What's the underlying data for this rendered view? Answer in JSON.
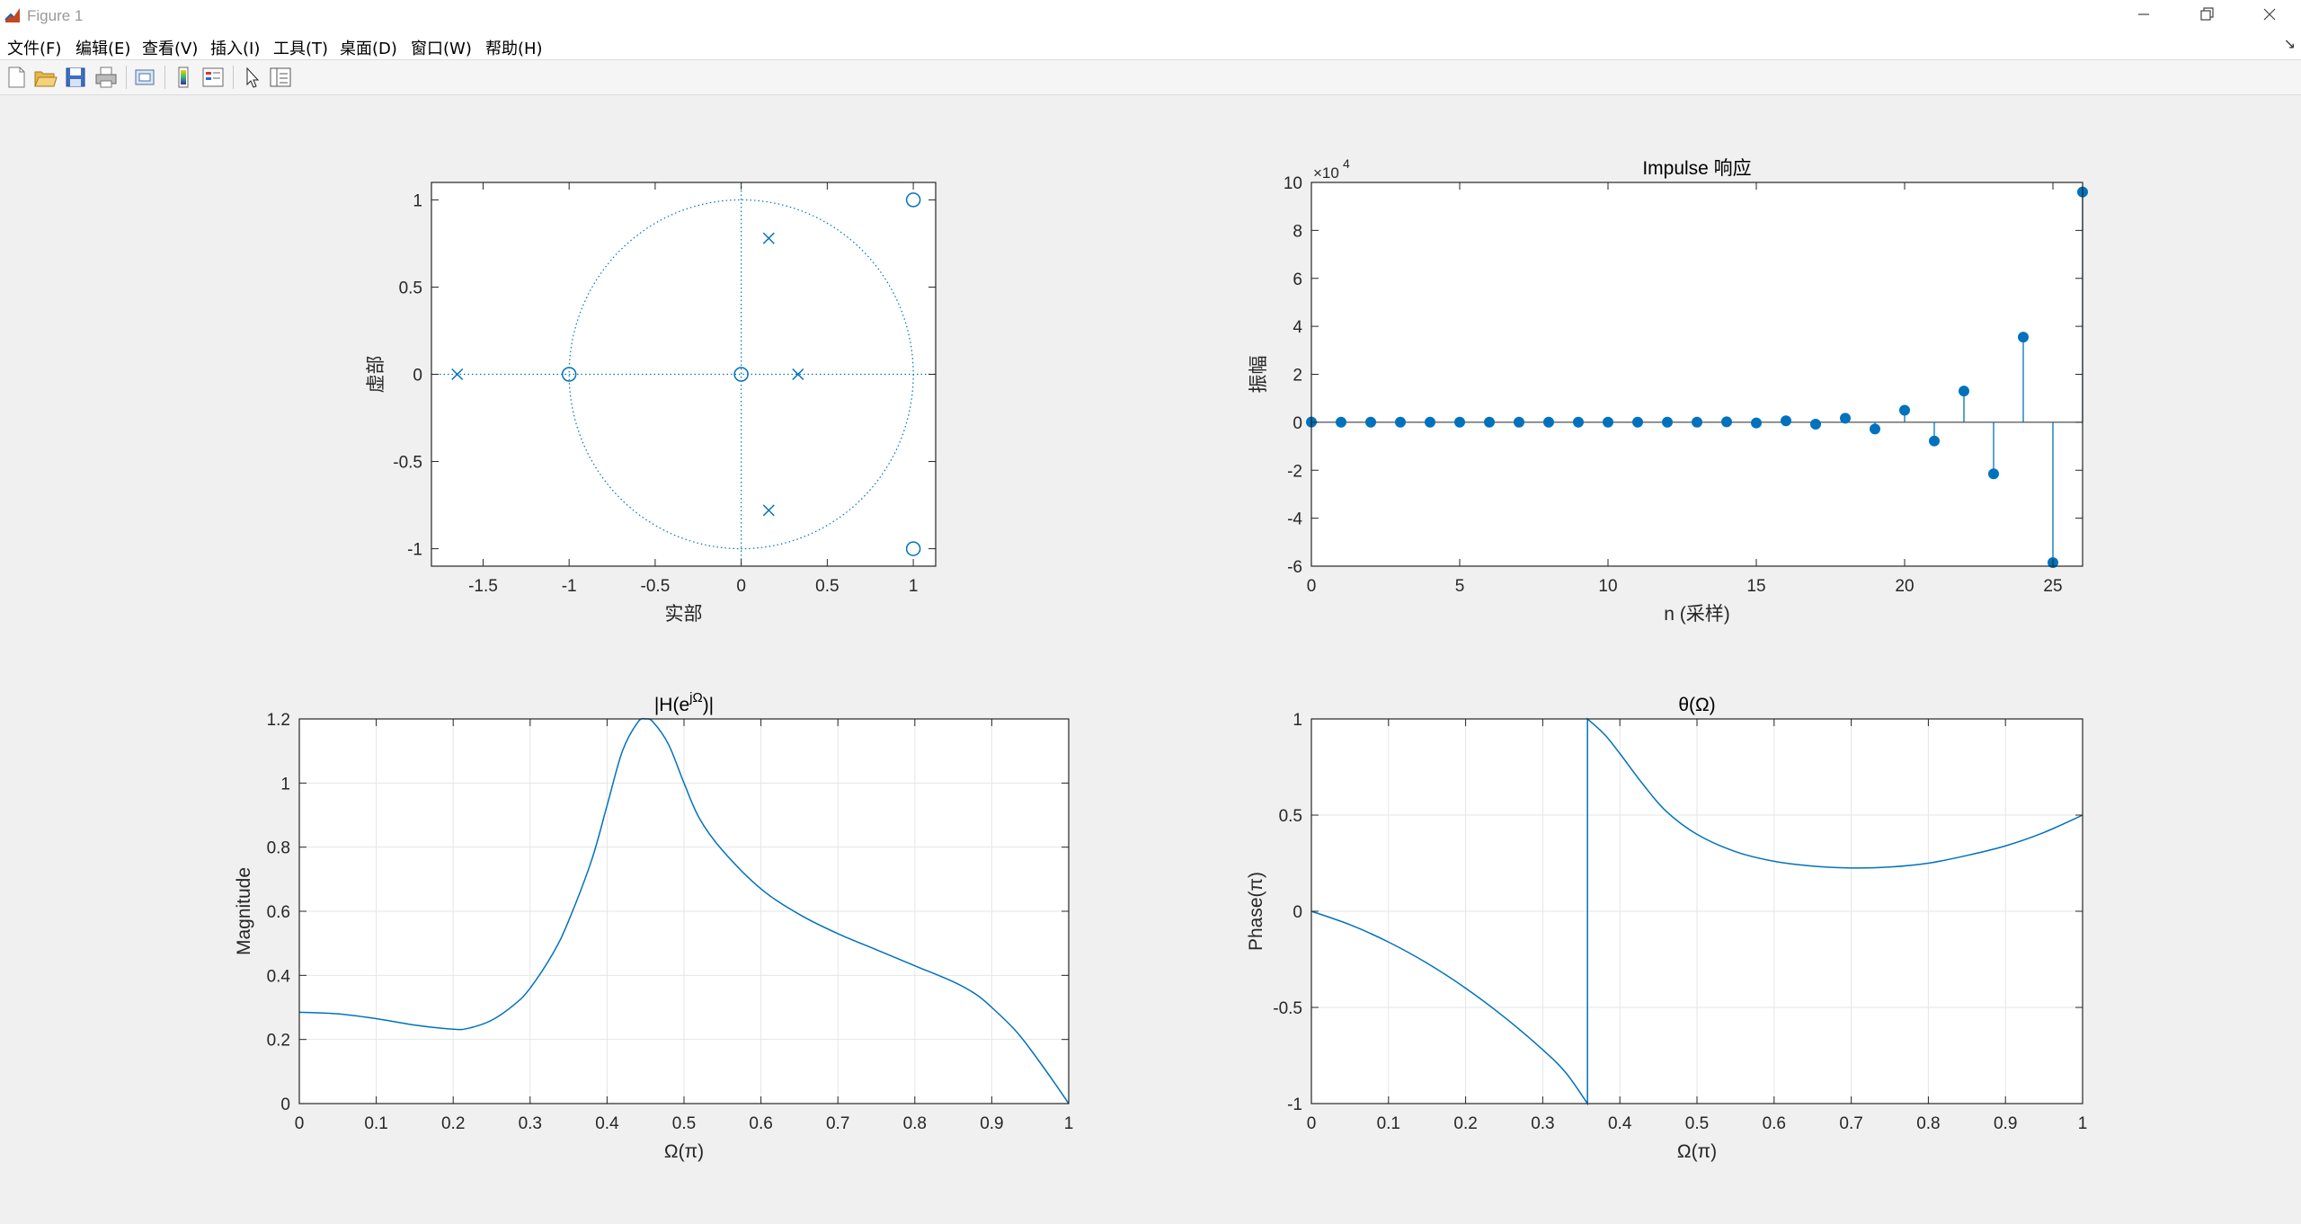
{
  "window": {
    "title": "Figure 1"
  },
  "menu": [
    "文件(F)",
    "编辑(E)",
    "查看(V)",
    "插入(I)",
    "工具(T)",
    "桌面(D)",
    "窗口(W)",
    "帮助(H)"
  ],
  "colors": {
    "plot": "#0072bd",
    "grid": "#e6e6e6",
    "axis": "#262626",
    "background": "#f0f0f0"
  },
  "toolbar_icons": [
    "new-figure-icon",
    "open-file-icon",
    "save-icon",
    "print-icon",
    "print-preview-icon",
    "link-plot-icon",
    "property-editor-icon",
    "pointer-icon",
    "insert-legend-icon"
  ],
  "chart_data": [
    {
      "type": "scatter",
      "xlabel": "实部",
      "ylabel": "虚部",
      "xlim": [
        -1.8,
        1.13
      ],
      "ylim": [
        -1.1,
        1.1
      ],
      "xticks": [
        -1.5,
        -1,
        -0.5,
        0,
        0.5,
        1
      ],
      "xticklabels": [
        "-1.5",
        "-1",
        "-0.5",
        "0",
        "0.5",
        "1"
      ],
      "yticks": [
        -1,
        -0.5,
        0,
        0.5,
        1
      ],
      "yticklabels": [
        "-1",
        "-0.5",
        "0",
        "0.5",
        "1"
      ],
      "grid": false,
      "unit_circle": true,
      "zeros": [
        [
          -1,
          0
        ],
        [
          0,
          0
        ],
        [
          1,
          1
        ],
        [
          1,
          -1
        ]
      ],
      "poles": [
        [
          -1.65,
          0
        ],
        [
          0.33,
          0
        ],
        [
          0.16,
          0.78
        ],
        [
          0.16,
          -0.78
        ]
      ]
    },
    {
      "type": "stem",
      "title": "Impulse 响应",
      "xlabel": "n (采样)",
      "ylabel": "振幅",
      "exponent_label": "×10",
      "exponent_power": "4",
      "xlim": [
        0,
        26
      ],
      "ylim": [
        -6,
        10
      ],
      "xticks": [
        0,
        5,
        10,
        15,
        20,
        25
      ],
      "xticklabels": [
        "0",
        "5",
        "10",
        "15",
        "20",
        "25"
      ],
      "yticks": [
        -6,
        -4,
        -2,
        0,
        2,
        4,
        6,
        8,
        10
      ],
      "yticklabels": [
        "-6",
        "-4",
        "-2",
        "0",
        "2",
        "4",
        "6",
        "8",
        "10"
      ],
      "grid": false,
      "x": [
        0,
        1,
        2,
        3,
        4,
        5,
        6,
        7,
        8,
        9,
        10,
        11,
        12,
        13,
        14,
        15,
        16,
        17,
        18,
        19,
        20,
        21,
        22,
        23,
        24,
        25,
        26
      ],
      "values": [
        0.01,
        0.005,
        0.005,
        0.005,
        0.005,
        0.005,
        0.005,
        0.005,
        0.005,
        0.005,
        0.005,
        0.005,
        0.005,
        0.005,
        0.02,
        -0.03,
        0.06,
        -0.08,
        0.17,
        -0.28,
        0.5,
        -0.78,
        1.3,
        -2.15,
        3.55,
        -5.85,
        9.6
      ]
    },
    {
      "type": "line",
      "title": "|H(e^{jΩ})|",
      "title_main": "|H(e",
      "title_sup": "jΩ",
      "title_end": ")|",
      "xlabel": "Ω(π)",
      "ylabel": "Magnitude",
      "xlim": [
        0,
        1
      ],
      "ylim": [
        0,
        1.2
      ],
      "xticks": [
        0,
        0.1,
        0.2,
        0.3,
        0.4,
        0.5,
        0.6,
        0.7,
        0.8,
        0.9,
        1
      ],
      "xticklabels": [
        "0",
        "0.1",
        "0.2",
        "0.3",
        "0.4",
        "0.5",
        "0.6",
        "0.7",
        "0.8",
        "0.9",
        "1"
      ],
      "yticks": [
        0,
        0.2,
        0.4,
        0.6,
        0.8,
        1,
        1.2
      ],
      "yticklabels": [
        "0",
        "0.2",
        "0.4",
        "0.6",
        "0.8",
        "1",
        "1.2"
      ],
      "grid": true,
      "x": [
        0,
        0.05,
        0.1,
        0.15,
        0.2,
        0.22,
        0.25,
        0.28,
        0.3,
        0.33,
        0.35,
        0.38,
        0.4,
        0.42,
        0.44,
        0.45,
        0.46,
        0.48,
        0.5,
        0.52,
        0.55,
        0.6,
        0.65,
        0.7,
        0.75,
        0.8,
        0.85,
        0.88,
        0.9,
        0.93,
        0.95,
        0.98,
        1.0
      ],
      "values": [
        0.285,
        0.28,
        0.265,
        0.245,
        0.232,
        0.235,
        0.26,
        0.31,
        0.36,
        0.47,
        0.57,
        0.76,
        0.93,
        1.1,
        1.19,
        1.2,
        1.19,
        1.12,
        1.0,
        0.89,
        0.79,
        0.67,
        0.59,
        0.53,
        0.48,
        0.43,
        0.38,
        0.34,
        0.3,
        0.23,
        0.17,
        0.07,
        0.0
      ]
    },
    {
      "type": "line",
      "title": "θ(Ω)",
      "xlabel": "Ω(π)",
      "ylabel": "Phase(π)",
      "xlim": [
        0,
        1
      ],
      "ylim": [
        -1,
        1
      ],
      "xticks": [
        0,
        0.1,
        0.2,
        0.3,
        0.4,
        0.5,
        0.6,
        0.7,
        0.8,
        0.9,
        1
      ],
      "xticklabels": [
        "0",
        "0.1",
        "0.2",
        "0.3",
        "0.4",
        "0.5",
        "0.6",
        "0.7",
        "0.8",
        "0.9",
        "1"
      ],
      "yticks": [
        -1,
        -0.5,
        0,
        0.5,
        1
      ],
      "yticklabels": [
        "-1",
        "-0.5",
        "0",
        "0.5",
        "1"
      ],
      "grid": true,
      "x": [
        0,
        0.05,
        0.1,
        0.15,
        0.2,
        0.25,
        0.3,
        0.33,
        0.358,
        0.358,
        0.38,
        0.4,
        0.43,
        0.46,
        0.5,
        0.55,
        0.6,
        0.65,
        0.7,
        0.75,
        0.8,
        0.85,
        0.9,
        0.95,
        1.0
      ],
      "values": [
        0.0,
        -0.07,
        -0.16,
        -0.27,
        -0.4,
        -0.55,
        -0.72,
        -0.84,
        -1.0,
        1.0,
        0.92,
        0.82,
        0.66,
        0.52,
        0.4,
        0.31,
        0.26,
        0.235,
        0.225,
        0.23,
        0.25,
        0.29,
        0.34,
        0.41,
        0.5
      ]
    }
  ]
}
